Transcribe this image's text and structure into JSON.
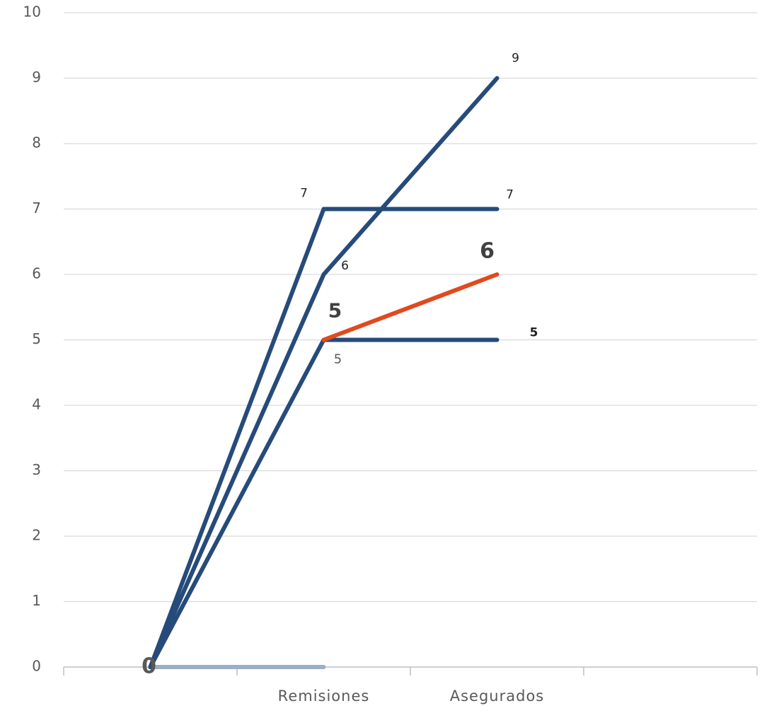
{
  "chart_data": {
    "type": "line",
    "categories": [
      null,
      "Remisiones",
      "Asegurados",
      null
    ],
    "series": [
      {
        "color": "#264b7a",
        "values": [
          0,
          7,
          7,
          null
        ]
      },
      {
        "color": "#264b7a",
        "values": [
          0,
          6,
          9,
          null
        ]
      },
      {
        "color": "#264b7a",
        "values": [
          0,
          5,
          5,
          null
        ]
      },
      {
        "color": "#e04a1f",
        "values": [
          null,
          5,
          6,
          null
        ]
      },
      {
        "color": "#9ab0c8",
        "values": [
          0,
          0,
          null,
          null
        ]
      }
    ],
    "ylim": [
      0,
      10
    ],
    "yticks": [
      0,
      1,
      2,
      3,
      4,
      5,
      6,
      7,
      8,
      9,
      10
    ],
    "grid": true
  }
}
